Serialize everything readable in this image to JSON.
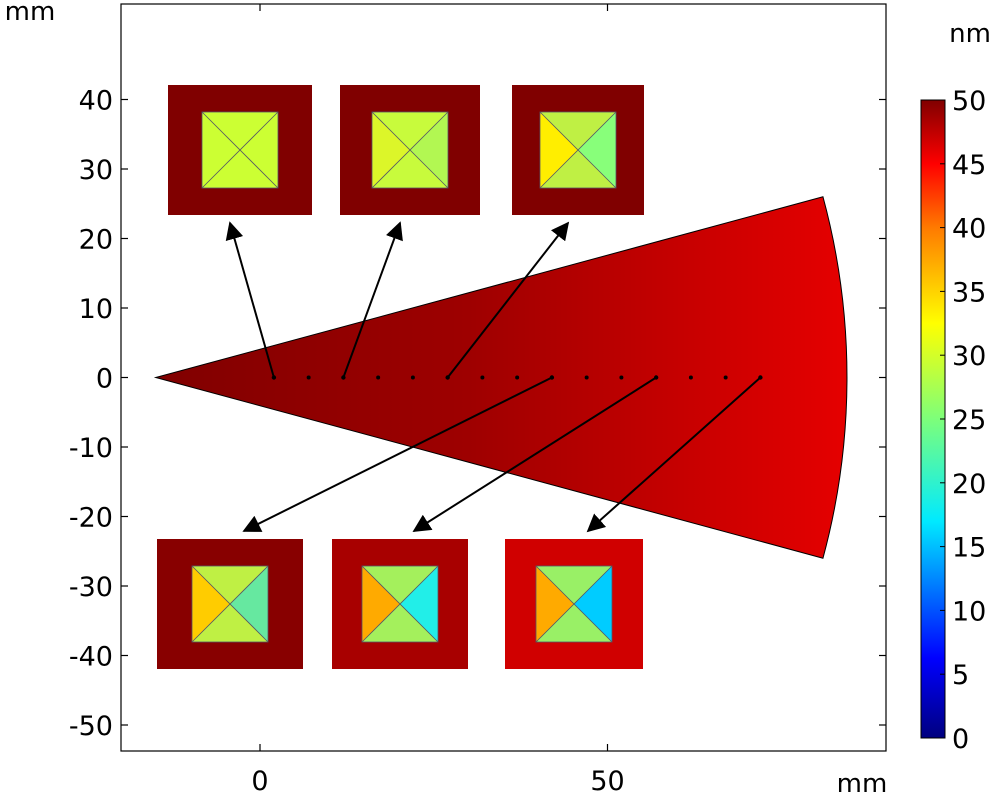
{
  "chart_data": {
    "type": "heatmap",
    "title": "",
    "x_unit": "mm",
    "y_unit": "mm",
    "colorbar_unit": "nm",
    "xlim": [
      -20,
      90
    ],
    "ylim": [
      -54,
      54
    ],
    "x_ticks": [
      0,
      50
    ],
    "y_ticks": [
      40,
      30,
      20,
      10,
      0,
      -10,
      -20,
      -30,
      -40,
      -50
    ],
    "y_tick_labels": [
      "40",
      "30",
      "20",
      "10",
      "0",
      "-10",
      "-20",
      "-30",
      "-40",
      "-50"
    ],
    "colorbar_range": [
      0,
      50
    ],
    "colorbar_ticks": [
      50,
      45,
      40,
      35,
      30,
      25,
      20,
      15,
      10,
      5,
      0
    ],
    "colorbar_tick_labels": [
      "50",
      "45",
      "40",
      "35",
      "30",
      "25",
      "20",
      "15",
      "10",
      "5",
      "0"
    ],
    "colormap": "rainbow",
    "grid": false,
    "sector": {
      "apex": [
        -15,
        0
      ],
      "outer_x": 85,
      "upper_edge_end": [
        81,
        26
      ],
      "lower_edge_end": [
        81,
        -26
      ],
      "value_at_apex": 50,
      "value_at_outer": 46
    },
    "probe_points_x": [
      2,
      12,
      27,
      42,
      57,
      72
    ],
    "probe_dots_x": [
      7,
      17,
      22,
      32,
      37,
      47,
      52,
      62,
      67
    ],
    "insets": [
      {
        "probe": [
          2,
          0
        ],
        "frame_color": "#800000",
        "quadrants": {
          "left": "#ccff33",
          "top": "#ccff33",
          "right": "#ccff33",
          "bottom": "#ccff33"
        }
      },
      {
        "probe": [
          12,
          0
        ],
        "frame_color": "#800000",
        "quadrants": {
          "left": "#dcf629",
          "top": "#c8fb3c",
          "right": "#b2f752",
          "bottom": "#c8fb3c"
        }
      },
      {
        "probe": [
          27,
          0
        ],
        "frame_color": "#800000",
        "quadrants": {
          "left": "#ffee00",
          "top": "#bff044",
          "right": "#88ff7a",
          "bottom": "#bff044"
        }
      },
      {
        "probe": [
          42,
          0
        ],
        "frame_color": "#880000",
        "quadrants": {
          "left": "#ffcc00",
          "top": "#bff044",
          "right": "#66e8a0",
          "bottom": "#bff044"
        }
      },
      {
        "probe": [
          57,
          0
        ],
        "frame_color": "#a80000",
        "quadrants": {
          "left": "#ffaa00",
          "top": "#a4f05c",
          "right": "#22eee8",
          "bottom": "#a4f05c"
        }
      },
      {
        "probe": [
          72,
          0
        ],
        "frame_color": "#d00000",
        "quadrants": {
          "left": "#ffaa00",
          "top": "#99f066",
          "right": "#00ccff",
          "bottom": "#99f066"
        }
      }
    ]
  }
}
